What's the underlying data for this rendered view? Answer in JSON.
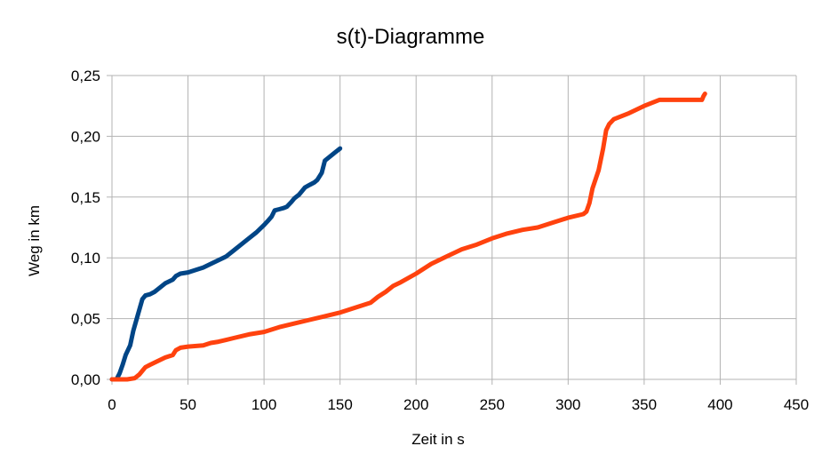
{
  "chart_data": {
    "type": "line",
    "title": "s(t)-Diagramme",
    "xlabel": "Zeit in s",
    "ylabel": "Weg in km",
    "xlim": [
      0,
      450
    ],
    "ylim": [
      0,
      0.25
    ],
    "xticks": [
      0,
      50,
      100,
      150,
      200,
      250,
      300,
      350,
      400,
      450
    ],
    "yticks": [
      0,
      0.05,
      0.1,
      0.15,
      0.2,
      0.25
    ],
    "xtick_labels": [
      "0",
      "50",
      "100",
      "150",
      "200",
      "250",
      "300",
      "350",
      "400",
      "450"
    ],
    "ytick_labels": [
      "0,00",
      "0,05",
      "0,10",
      "0,15",
      "0,20",
      "0,25"
    ],
    "grid": true,
    "legend": "none",
    "series": [
      {
        "color": "#004586",
        "x": [
          0,
          3,
          5,
          7,
          9,
          12,
          14,
          17,
          20,
          22,
          25,
          28,
          30,
          35,
          40,
          42,
          45,
          50,
          55,
          60,
          65,
          70,
          75,
          80,
          85,
          90,
          95,
          100,
          103,
          105,
          107,
          110,
          113,
          115,
          118,
          120,
          123,
          127,
          130,
          133,
          135,
          137,
          138,
          140,
          143,
          145,
          147,
          150
        ],
        "y": [
          0,
          0,
          0.005,
          0.012,
          0.02,
          0.028,
          0.04,
          0.053,
          0.066,
          0.069,
          0.07,
          0.072,
          0.074,
          0.079,
          0.082,
          0.085,
          0.087,
          0.088,
          0.09,
          0.092,
          0.095,
          0.098,
          0.101,
          0.106,
          0.111,
          0.116,
          0.121,
          0.127,
          0.131,
          0.134,
          0.139,
          0.14,
          0.141,
          0.142,
          0.146,
          0.149,
          0.152,
          0.158,
          0.16,
          0.162,
          0.164,
          0.168,
          0.17,
          0.18,
          0.183,
          0.185,
          0.187,
          0.19
        ]
      },
      {
        "color": "#ff420e",
        "x": [
          0,
          10,
          15,
          18,
          20,
          22,
          25,
          30,
          35,
          40,
          42,
          45,
          50,
          60,
          65,
          70,
          80,
          90,
          100,
          110,
          120,
          130,
          140,
          150,
          160,
          170,
          175,
          180,
          185,
          190,
          200,
          210,
          220,
          230,
          240,
          250,
          260,
          270,
          280,
          290,
          300,
          310,
          312,
          314,
          316,
          320,
          323,
          325,
          327,
          330,
          340,
          350,
          360,
          370,
          380,
          388,
          389,
          390
        ],
        "y": [
          0,
          0,
          0.001,
          0.004,
          0.007,
          0.01,
          0.012,
          0.015,
          0.018,
          0.02,
          0.024,
          0.026,
          0.027,
          0.028,
          0.03,
          0.031,
          0.034,
          0.037,
          0.039,
          0.043,
          0.046,
          0.049,
          0.052,
          0.055,
          0.059,
          0.063,
          0.068,
          0.072,
          0.077,
          0.08,
          0.087,
          0.095,
          0.101,
          0.107,
          0.111,
          0.116,
          0.12,
          0.123,
          0.125,
          0.129,
          0.133,
          0.136,
          0.138,
          0.145,
          0.157,
          0.172,
          0.19,
          0.205,
          0.21,
          0.214,
          0.219,
          0.225,
          0.23,
          0.23,
          0.23,
          0.23,
          0.233,
          0.235
        ]
      }
    ]
  }
}
